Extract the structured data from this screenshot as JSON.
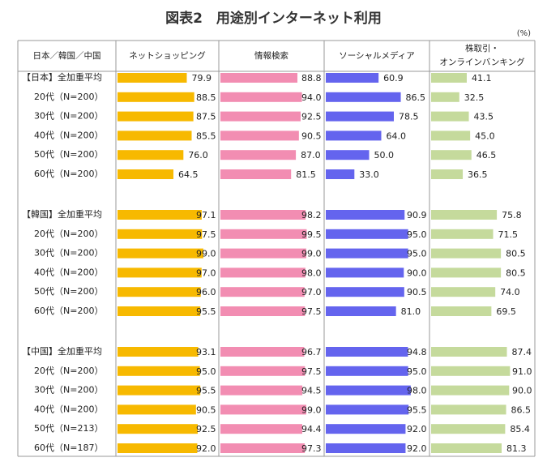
{
  "chart_data": {
    "type": "bar",
    "title": "図表2　用途別インターネット利用",
    "unit": "(%)",
    "corner_label": "日本／韓国／中国",
    "categories": [
      "【日本】全加重平均",
      "20代（N=200）",
      "30代（N=200）",
      "40代（N=200）",
      "50代（N=200）",
      "60代（N=200）",
      "【韓国】全加重平均",
      "20代（N=200）",
      "30代（N=200）",
      "40代（N=200）",
      "50代（N=200）",
      "60代（N=200）",
      "【中国】全加重平均",
      "20代（N=200）",
      "30代（N=200）",
      "40代（N=200）",
      "50代（N=213）",
      "60代（N=187）"
    ],
    "xlim": [
      0,
      100
    ],
    "series": [
      {
        "name": "ネットショッピング",
        "color": "#f7b900",
        "values": [
          79.9,
          88.5,
          87.5,
          85.5,
          76.0,
          64.5,
          97.1,
          97.5,
          99.0,
          97.0,
          96.0,
          95.5,
          93.1,
          95.0,
          95.5,
          90.5,
          92.5,
          92.0
        ],
        "value_labels": [
          "79.9",
          "88.5",
          "87.5",
          "85.5",
          "76.0",
          "64.5",
          "97.1",
          "97.5",
          "99.0",
          "97.0",
          "96.0",
          "95.5",
          "93.1",
          "95.0",
          "95.5",
          "90.5",
          "92.5",
          "92.0"
        ]
      },
      {
        "name": "情報検索",
        "color": "#f28db2",
        "values": [
          88.8,
          94.0,
          92.5,
          90.5,
          87.0,
          81.5,
          98.2,
          99.5,
          99.0,
          98.0,
          97.0,
          97.5,
          96.7,
          97.5,
          94.5,
          99.0,
          94.4,
          97.3
        ],
        "value_labels": [
          "88.8",
          "94.0",
          "92.5",
          "90.5",
          "87.0",
          "81.5",
          "98.2",
          "99.5",
          "99.0",
          "98.0",
          "97.0",
          "97.5",
          "96.7",
          "97.5",
          "94.5",
          "99.0",
          "94.4",
          "97.3"
        ]
      },
      {
        "name": "ソーシャルメディア",
        "color": "#6464ee",
        "values": [
          60.9,
          86.5,
          78.5,
          64.0,
          50.0,
          33.0,
          90.9,
          95.0,
          95.0,
          90.0,
          90.5,
          81.0,
          94.8,
          95.0,
          98.0,
          95.5,
          92.0,
          92.0
        ],
        "value_labels": [
          "60.9",
          "86.5",
          "78.5",
          "64.0",
          "50.0",
          "33.0",
          "90.9",
          "95.0",
          "95.0",
          "90.0",
          "90.5",
          "81.0",
          "94.8",
          "95.0",
          "98.0",
          "95.5",
          "92.0",
          "92.0"
        ]
      },
      {
        "name": "株取引・\nオンラインバンキング",
        "color": "#c5da9c",
        "values": [
          41.1,
          32.5,
          43.5,
          45.0,
          46.5,
          36.5,
          75.8,
          71.5,
          80.5,
          80.5,
          74.0,
          69.5,
          87.4,
          91.0,
          90.0,
          86.5,
          85.4,
          81.3
        ],
        "value_labels": [
          "41.1",
          "32.5",
          "43.5",
          "45.0",
          "46.5",
          "36.5",
          "75.8",
          "71.5",
          "80.5",
          "80.5",
          "74.0",
          "69.5",
          "87.4",
          "91.0",
          "90.0",
          "86.5",
          "85.4",
          "81.3"
        ]
      }
    ]
  }
}
